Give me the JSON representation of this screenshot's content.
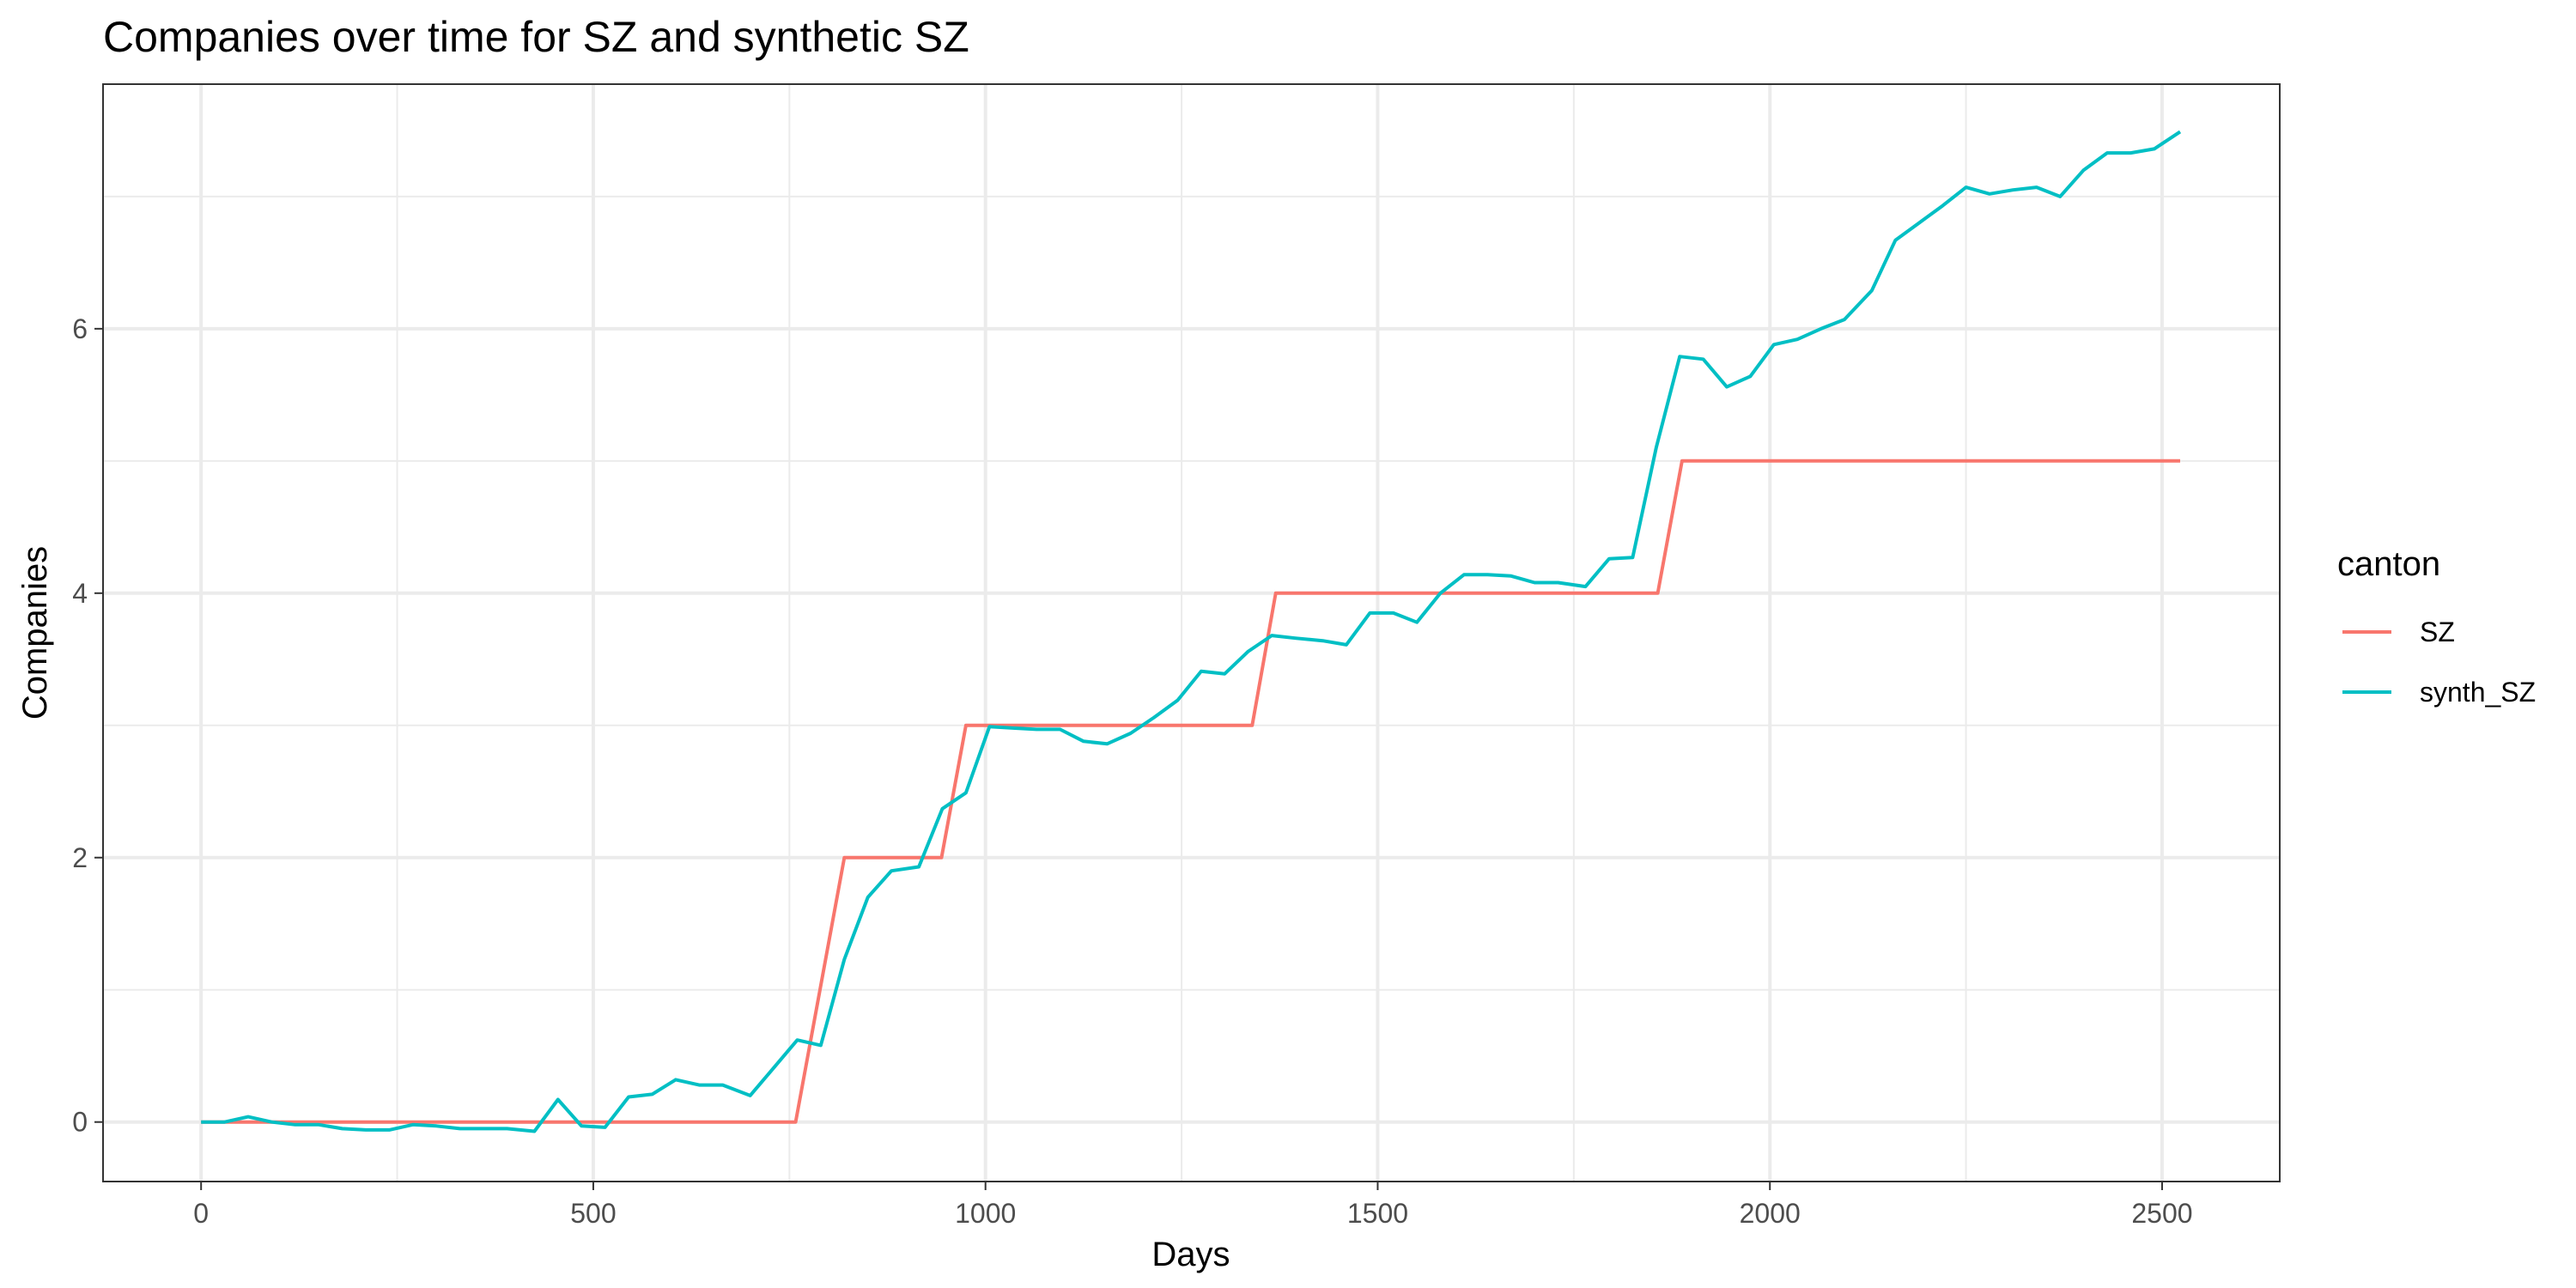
{
  "chart_data": {
    "type": "line",
    "title": "Companies over time for SZ and synthetic SZ",
    "xlabel": "Days",
    "ylabel": "Companies",
    "xlim": [
      -125,
      2650
    ],
    "ylim": [
      -0.45,
      7.85
    ],
    "xticks": [
      0,
      500,
      1000,
      1500,
      2000,
      2500
    ],
    "xtick_labels": [
      "0",
      "500",
      "1000",
      "1500",
      "2000",
      "2500"
    ],
    "xminor": [
      250,
      750,
      1250,
      1750,
      2250
    ],
    "yticks": [
      0,
      2,
      4,
      6
    ],
    "ytick_labels": [
      "0",
      "2",
      "4",
      "6"
    ],
    "yminor": [
      1,
      3,
      5,
      7
    ],
    "grid": true,
    "legend": {
      "title": "canton",
      "position": "right"
    },
    "series": [
      {
        "name": "SZ",
        "color": "#F8766D",
        "x": [
          0,
          758,
          820,
          944,
          975,
          1340,
          1370,
          1857,
          1888,
          2523
        ],
        "y": [
          0,
          0,
          2,
          2,
          3,
          3,
          4,
          4,
          5,
          5
        ]
      },
      {
        "name": "synth_SZ",
        "color": "#00BFC4",
        "x": [
          0,
          30,
          60,
          90,
          120,
          150,
          180,
          210,
          240,
          270,
          300,
          330,
          360,
          390,
          425,
          455,
          485,
          515,
          545,
          575,
          605,
          635,
          665,
          700,
          730,
          760,
          790,
          820,
          850,
          880,
          915,
          945,
          975,
          1005,
          1035,
          1065,
          1095,
          1125,
          1155,
          1185,
          1215,
          1245,
          1275,
          1305,
          1335,
          1365,
          1395,
          1430,
          1460,
          1490,
          1520,
          1550,
          1580,
          1610,
          1640,
          1670,
          1700,
          1730,
          1765,
          1795,
          1825,
          1855,
          1885,
          1915,
          1945,
          1975,
          2005,
          2035,
          2065,
          2095,
          2130,
          2160,
          2190,
          2220,
          2250,
          2280,
          2310,
          2340,
          2370,
          2400,
          2430,
          2460,
          2490,
          2523
        ],
        "y": [
          0,
          0,
          0.04,
          0,
          -0.02,
          -0.02,
          -0.05,
          -0.06,
          -0.06,
          -0.02,
          -0.03,
          -0.05,
          -0.05,
          -0.05,
          -0.07,
          0.17,
          -0.03,
          -0.04,
          0.19,
          0.21,
          0.32,
          0.28,
          0.28,
          0.2,
          0.41,
          0.62,
          0.58,
          1.23,
          1.7,
          1.9,
          1.93,
          2.37,
          2.49,
          2.99,
          2.98,
          2.97,
          2.97,
          2.88,
          2.86,
          2.94,
          3.06,
          3.19,
          3.41,
          3.39,
          3.56,
          3.68,
          3.66,
          3.64,
          3.61,
          3.85,
          3.85,
          3.78,
          4.0,
          4.14,
          4.14,
          4.13,
          4.08,
          4.08,
          4.05,
          4.26,
          4.27,
          5.1,
          5.79,
          5.77,
          5.56,
          5.64,
          5.88,
          5.92,
          6.0,
          6.07,
          6.29,
          6.67,
          6.8,
          6.93,
          7.07,
          7.02,
          7.05,
          7.07,
          7.0,
          7.2,
          7.33,
          7.33,
          7.36,
          7.49
        ]
      }
    ]
  }
}
